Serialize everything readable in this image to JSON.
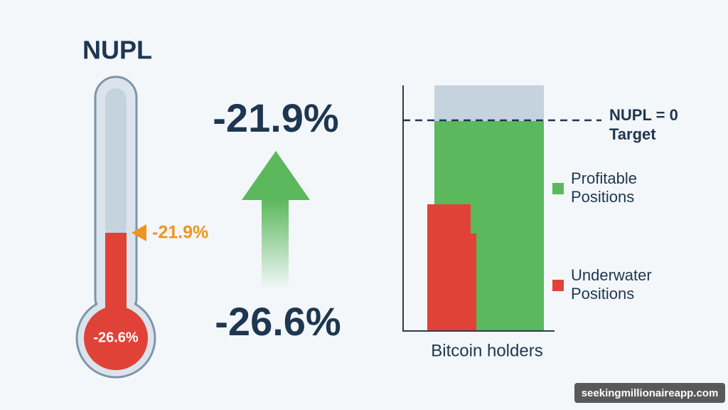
{
  "title": "NUPL",
  "thermometer": {
    "marker_label": "-21.9%",
    "bulb_label": "-26.6%"
  },
  "change": {
    "to": "-21.9%",
    "from": "-26.6%"
  },
  "holders_chart": {
    "target_label": [
      "NUPL = 0",
      "Target"
    ],
    "legend": [
      {
        "lines": [
          "Profitable",
          "Positions"
        ]
      },
      {
        "lines": [
          "Underwater",
          "Positions"
        ]
      }
    ],
    "x_label": "Bitcoin holders"
  },
  "watermark": "seekingmillionaireapp.com"
}
